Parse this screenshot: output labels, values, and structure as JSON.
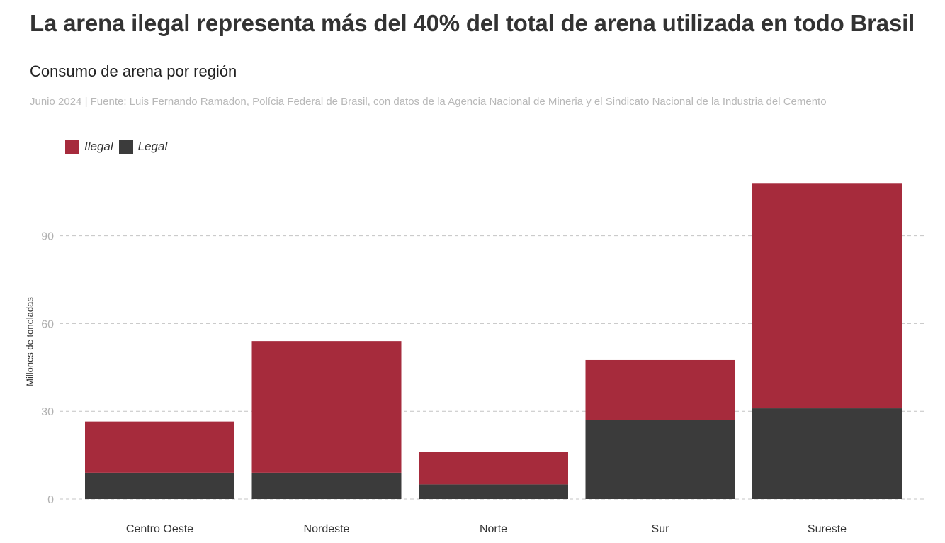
{
  "header": {
    "title": "La arena ilegal representa más del 40% del total de arena utilizada en todo Brasil",
    "subtitle": "Consumo de arena por región",
    "source": "Junio 2024 | Fuente: Luis Fernando Ramadon, Polícia Federal de Brasil, con datos de la Agencia Nacional de Mineria y el Sindicato Nacional de la Industria del Cemento"
  },
  "legend": {
    "items": [
      {
        "label": "Ilegal",
        "color": "#a62b3c"
      },
      {
        "label": "Legal",
        "color": "#3b3b3b"
      }
    ]
  },
  "chart_data": {
    "type": "bar",
    "stacked": true,
    "categories": [
      "Centro Oeste",
      "Nordeste",
      "Norte",
      "Sur",
      "Sureste"
    ],
    "series": [
      {
        "name": "Legal",
        "color": "#3b3b3b",
        "values": [
          9,
          9,
          5,
          27,
          31
        ]
      },
      {
        "name": "Ilegal",
        "color": "#a62b3c",
        "values": [
          17.5,
          45,
          11,
          20.5,
          77
        ]
      }
    ],
    "ylabel": "Millones de toneladas",
    "xlabel": "",
    "ylim": [
      0,
      108
    ],
    "yticks": [
      0,
      30,
      60,
      90
    ],
    "grid": true,
    "legend_position": "top-left"
  }
}
